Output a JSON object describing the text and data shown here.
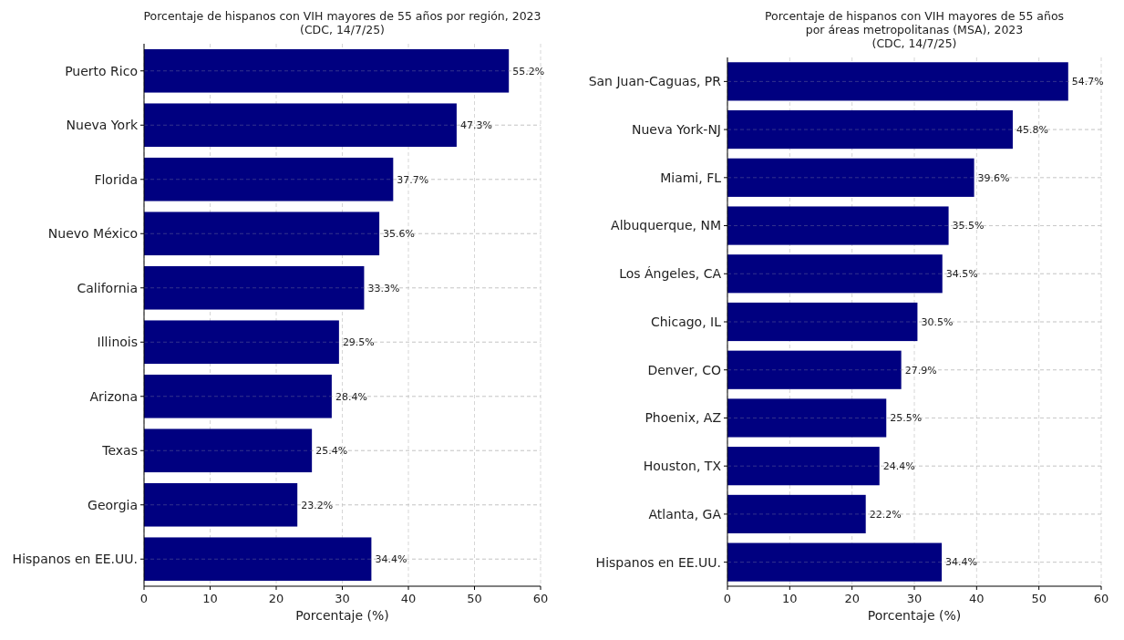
{
  "chart_data": [
    {
      "type": "bar",
      "orientation": "horizontal",
      "title": "Porcentaje de hispanos con VIH mayores de 55 años por región, 2023\n(CDC, 14/7/25)",
      "xlabel": "Porcentaje (%)",
      "categories": [
        "Puerto Rico",
        "Nueva York",
        "Florida",
        "Nuevo México",
        "California",
        "Illinois",
        "Arizona",
        "Texas",
        "Georgia",
        "Hispanos en EE.UU."
      ],
      "values": [
        55.2,
        47.3,
        37.7,
        35.6,
        33.3,
        29.5,
        28.4,
        25.4,
        23.2,
        34.4
      ],
      "color": "#000080",
      "value_labels": [
        "55.2%",
        "47.3%",
        "37.7%",
        "35.6%",
        "33.3%",
        "29.5%",
        "28.4%",
        "25.4%",
        "23.2%",
        "34.4%"
      ],
      "xlim": [
        0,
        60
      ],
      "xticks": [
        0,
        10,
        20,
        30,
        40,
        50,
        60
      ],
      "grid": true
    },
    {
      "type": "bar",
      "orientation": "horizontal",
      "title": "Porcentaje de hispanos con VIH mayores de 55 años\npor áreas metropolitanas (MSA), 2023\n(CDC, 14/7/25)",
      "xlabel": "Porcentaje (%)",
      "categories": [
        "San Juan-Caguas, PR",
        "Nueva York-NJ",
        "Miami, FL",
        "Albuquerque, NM",
        "Los Ángeles, CA",
        "Chicago, IL",
        "Denver, CO",
        "Phoenix, AZ",
        "Houston, TX",
        "Atlanta, GA",
        "Hispanos en EE.UU."
      ],
      "values": [
        54.7,
        45.8,
        39.6,
        35.5,
        34.5,
        30.5,
        27.9,
        25.5,
        24.4,
        22.2,
        34.4
      ],
      "color": "#000080",
      "value_labels": [
        "54.7%",
        "45.8%",
        "39.6%",
        "35.5%",
        "34.5%",
        "30.5%",
        "27.9%",
        "25.5%",
        "24.4%",
        "22.2%",
        "34.4%"
      ],
      "xlim": [
        0,
        60
      ],
      "xticks": [
        0,
        10,
        20,
        30,
        40,
        50,
        60
      ],
      "grid": true
    }
  ]
}
